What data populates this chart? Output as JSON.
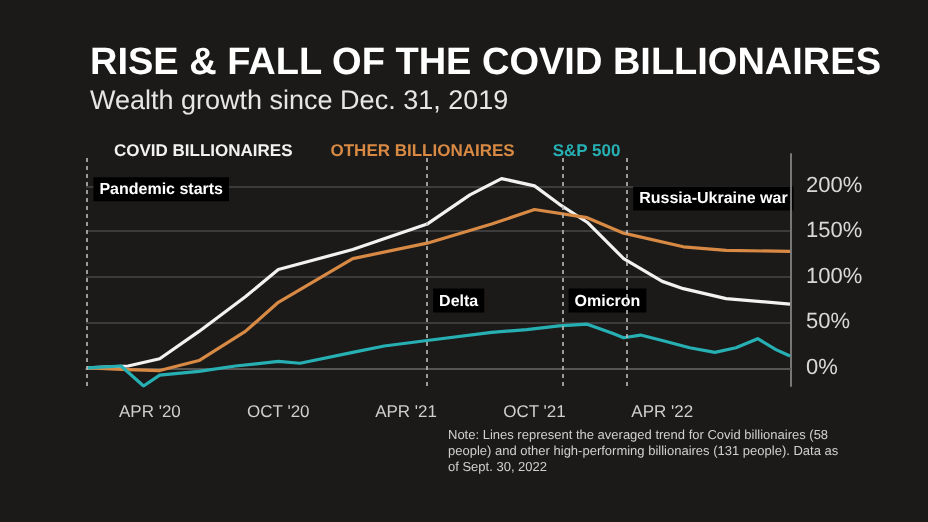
{
  "chart_data": {
    "type": "line",
    "title": "RISE & FALL OF THE COVID BILLIONAIRES",
    "subtitle": "Wealth growth since Dec. 31, 2019",
    "xlim": [
      "2020-01-01",
      "2022-09-30"
    ],
    "xticks": [
      {
        "value": "2020-04-01",
        "label": "APR '20"
      },
      {
        "value": "2020-10-01",
        "label": "OCT '20"
      },
      {
        "value": "2021-04-01",
        "label": "APR '21"
      },
      {
        "value": "2021-10-01",
        "label": "OCT '21"
      },
      {
        "value": "2022-04-01",
        "label": "APR '22"
      }
    ],
    "ylim": [
      -20,
      235
    ],
    "yticks": [
      {
        "value": 0,
        "label": "0%"
      },
      {
        "value": 50,
        "label": "50%"
      },
      {
        "value": 100,
        "label": "100%"
      },
      {
        "value": 150,
        "label": "150%"
      },
      {
        "value": 200,
        "label": "200%"
      }
    ],
    "grid": "y",
    "legend": "top left",
    "marker": "none",
    "line_style": "solid",
    "series": [
      {
        "name": "COVID BILLIONAIRES",
        "color": "#f2f2f2",
        "x": [
          "2020-01-03",
          "2020-03-01",
          "2020-04-15",
          "2020-06-10",
          "2020-08-15",
          "2020-10-01",
          "2021-01-15",
          "2021-05-01",
          "2021-07-01",
          "2021-08-15",
          "2021-10-01",
          "2021-11-05",
          "2021-12-15",
          "2022-02-05",
          "2022-04-01",
          "2022-05-01",
          "2022-07-01",
          "2022-09-30"
        ],
        "values": [
          0,
          2,
          10,
          40,
          78,
          108,
          130,
          158,
          190,
          208,
          200,
          180,
          160,
          120,
          95,
          87,
          76,
          70
        ]
      },
      {
        "name": "OTHER BILLIONAIRES",
        "color": "#d88a45",
        "x": [
          "2020-01-03",
          "2020-03-01",
          "2020-04-15",
          "2020-06-10",
          "2020-08-15",
          "2020-10-01",
          "2021-01-15",
          "2021-05-01",
          "2021-08-01",
          "2021-10-01",
          "2021-12-15",
          "2022-02-05",
          "2022-05-01",
          "2022-07-01",
          "2022-09-30"
        ],
        "values": [
          0,
          -2,
          -3,
          8,
          40,
          72,
          120,
          137,
          158,
          174,
          165,
          148,
          133,
          129,
          128
        ]
      },
      {
        "name": "S&P 500",
        "color": "#27b0b4",
        "x": [
          "2020-01-03",
          "2020-02-20",
          "2020-03-23",
          "2020-04-15",
          "2020-06-10",
          "2020-08-01",
          "2020-10-01",
          "2020-11-01",
          "2021-01-15",
          "2021-03-01",
          "2021-05-01",
          "2021-08-01",
          "2021-09-20",
          "2021-11-05",
          "2021-12-15",
          "2022-01-20",
          "2022-02-05",
          "2022-03-01",
          "2022-04-01",
          "2022-05-10",
          "2022-06-15",
          "2022-07-15",
          "2022-08-15",
          "2022-09-10",
          "2022-09-30"
        ],
        "values": [
          0,
          2,
          -20,
          -8,
          -4,
          2,
          7,
          5,
          17,
          24,
          30,
          39,
          42,
          46,
          48,
          38,
          33,
          36,
          30,
          22,
          17,
          22,
          32,
          20,
          13
        ]
      }
    ],
    "ref_lines": [
      {
        "axis": "x",
        "value": "2020-01-03",
        "label": "Pandemic starts"
      },
      {
        "axis": "x",
        "value": "2021-05-01",
        "label": "Delta"
      },
      {
        "axis": "x",
        "value": "2021-11-10",
        "label": "Omicron"
      },
      {
        "axis": "x",
        "value": "2022-02-10",
        "label": "Russia-Ukraine war"
      }
    ],
    "annotations": [
      "Note: Lines represent the averaged trend for Covid billionaires (58 people) and other high-performing billionaires (131 people). Data as of Sept. 30, 2022"
    ]
  }
}
